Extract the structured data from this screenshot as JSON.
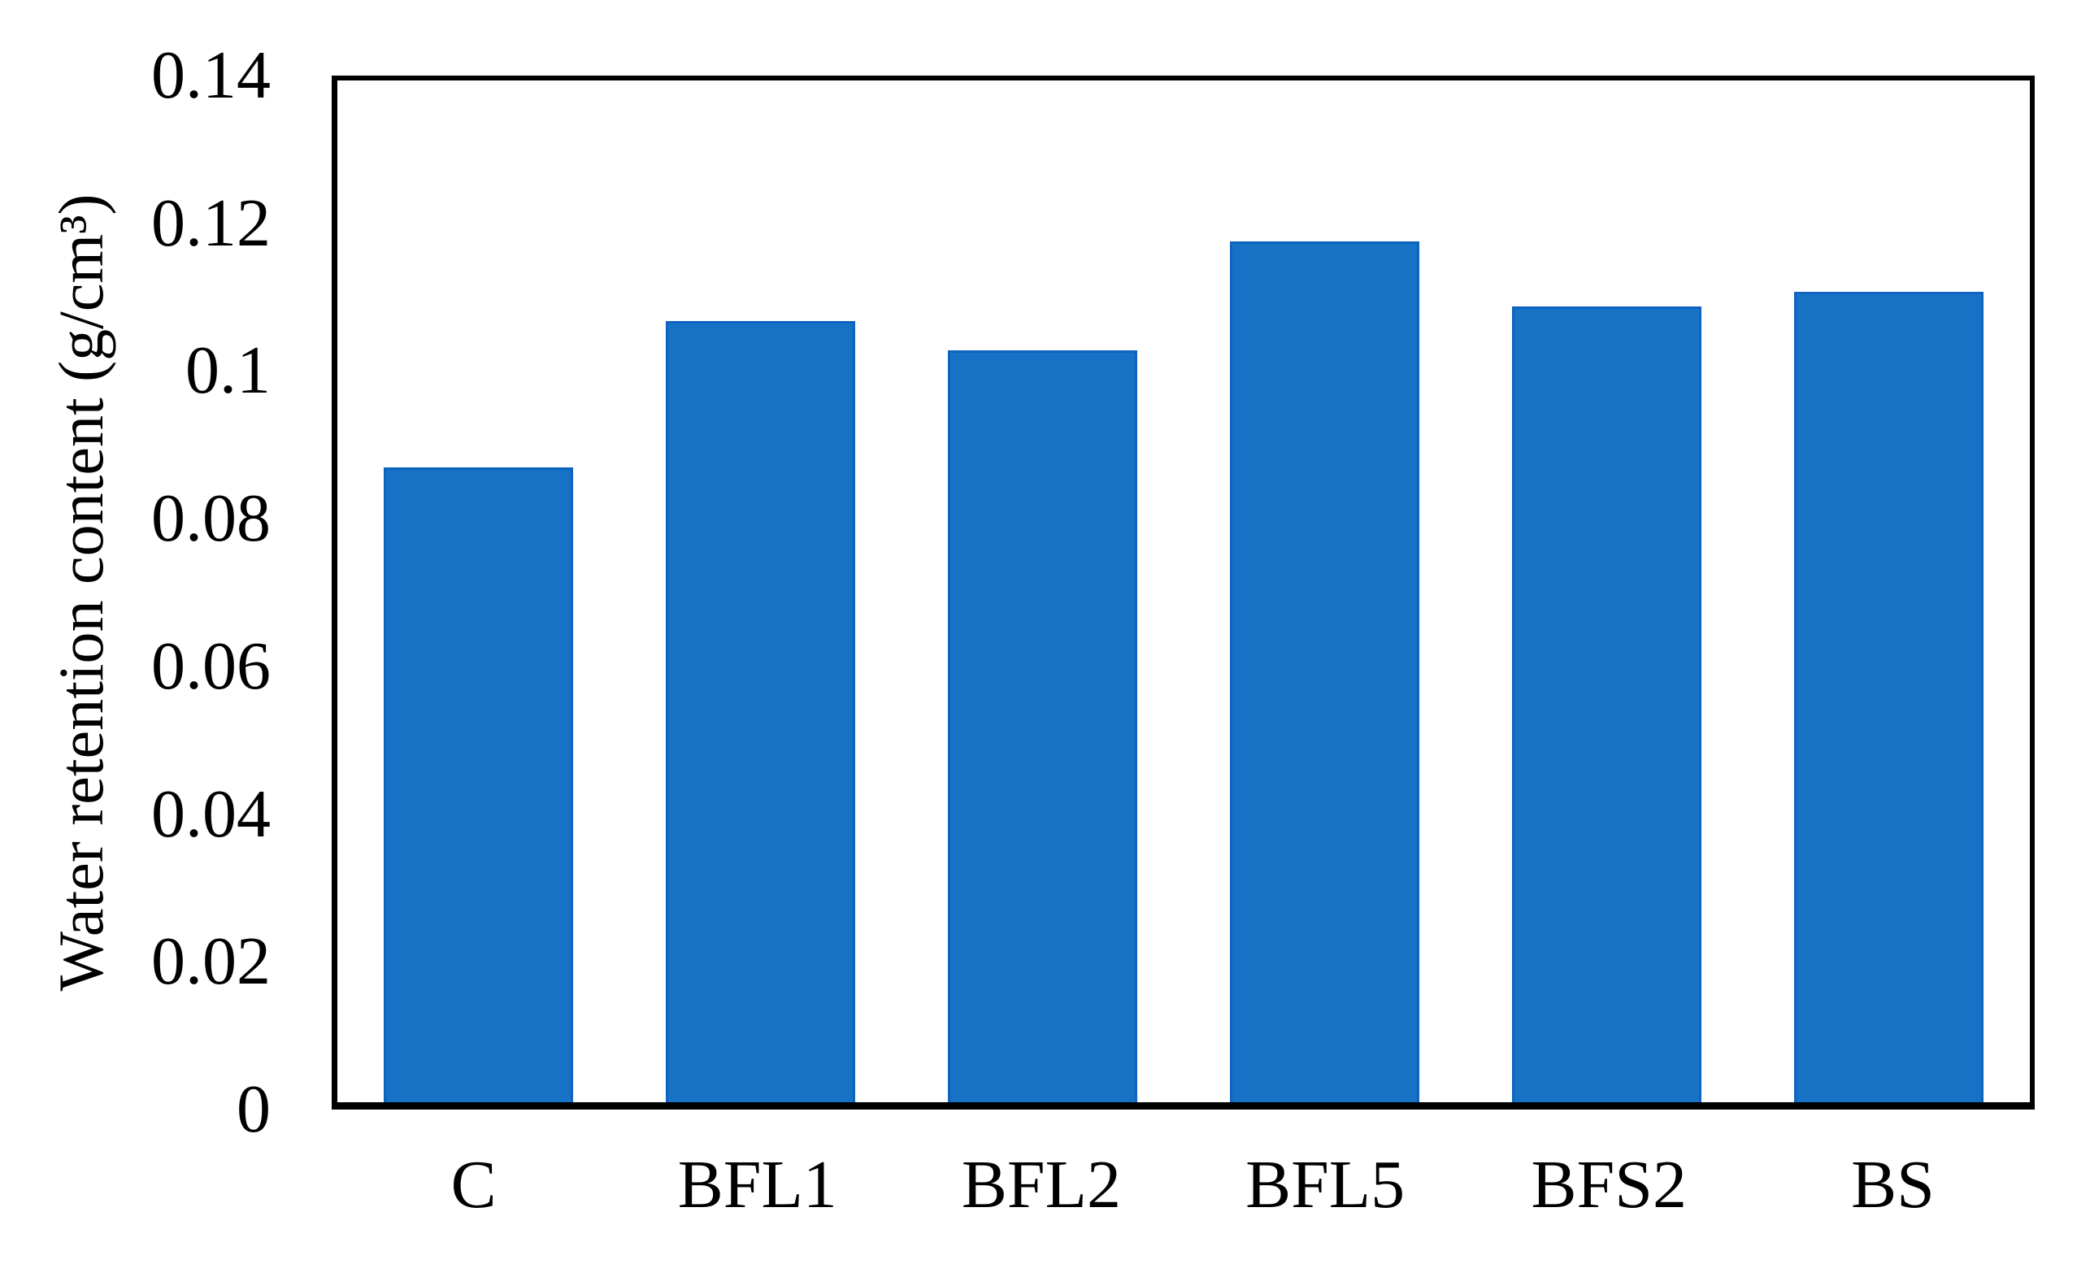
{
  "chart_data": {
    "type": "bar",
    "title": "",
    "categories": [
      "C",
      "BFL1",
      "BFL2",
      "BFL5",
      "BFS2",
      "BS"
    ],
    "values": [
      0.087,
      0.107,
      0.103,
      0.118,
      0.109,
      0.111
    ],
    "xlabel": "",
    "ylabel": "Water retention content (g/cm³)",
    "ylim": [
      0,
      0.14
    ],
    "yticks": [
      {
        "value": 0,
        "label": "0"
      },
      {
        "value": 0.02,
        "label": "0.02"
      },
      {
        "value": 0.04,
        "label": "0.04"
      },
      {
        "value": 0.06,
        "label": "0.06"
      },
      {
        "value": 0.08,
        "label": "0.08"
      },
      {
        "value": 0.1,
        "label": "0.1"
      },
      {
        "value": 0.12,
        "label": "0.12"
      },
      {
        "value": 0.14,
        "label": "0.14"
      }
    ],
    "grid": false,
    "legend_position": "none",
    "bar_color": "#1772c6",
    "bar_border_color": "#0d63be",
    "axis_color": "#000000",
    "background_color": "#ffffff"
  }
}
